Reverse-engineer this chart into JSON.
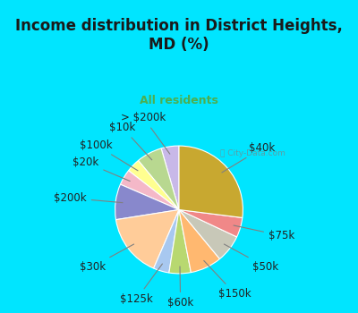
{
  "title": "Income distribution in District Heights,\nMD (%)",
  "subtitle": "All residents",
  "title_color": "#1a1a1a",
  "subtitle_color": "#4caf50",
  "background_top": "#00e5ff",
  "background_chart": "#e8f5e9",
  "watermark": "City-Data.com",
  "labels": [
    "> $200k",
    "$10k",
    "$100k",
    "$20k",
    "$200k",
    "$30k",
    "$125k",
    "$60k",
    "$150k",
    "$50k",
    "$75k",
    "$40k"
  ],
  "values": [
    4.5,
    6.5,
    3.5,
    4.0,
    9.0,
    16.0,
    4.0,
    5.5,
    8.0,
    7.0,
    5.0,
    27.0
  ],
  "colors": [
    "#c8b8e8",
    "#b8d890",
    "#ffff90",
    "#f4b8c8",
    "#8888cc",
    "#ffcc99",
    "#a8c8f0",
    "#b8d870",
    "#ffb870",
    "#c8c8b8",
    "#f08888",
    "#c8a830"
  ],
  "startangle": 90,
  "label_fontsize": 8.5,
  "label_color": "#222222"
}
